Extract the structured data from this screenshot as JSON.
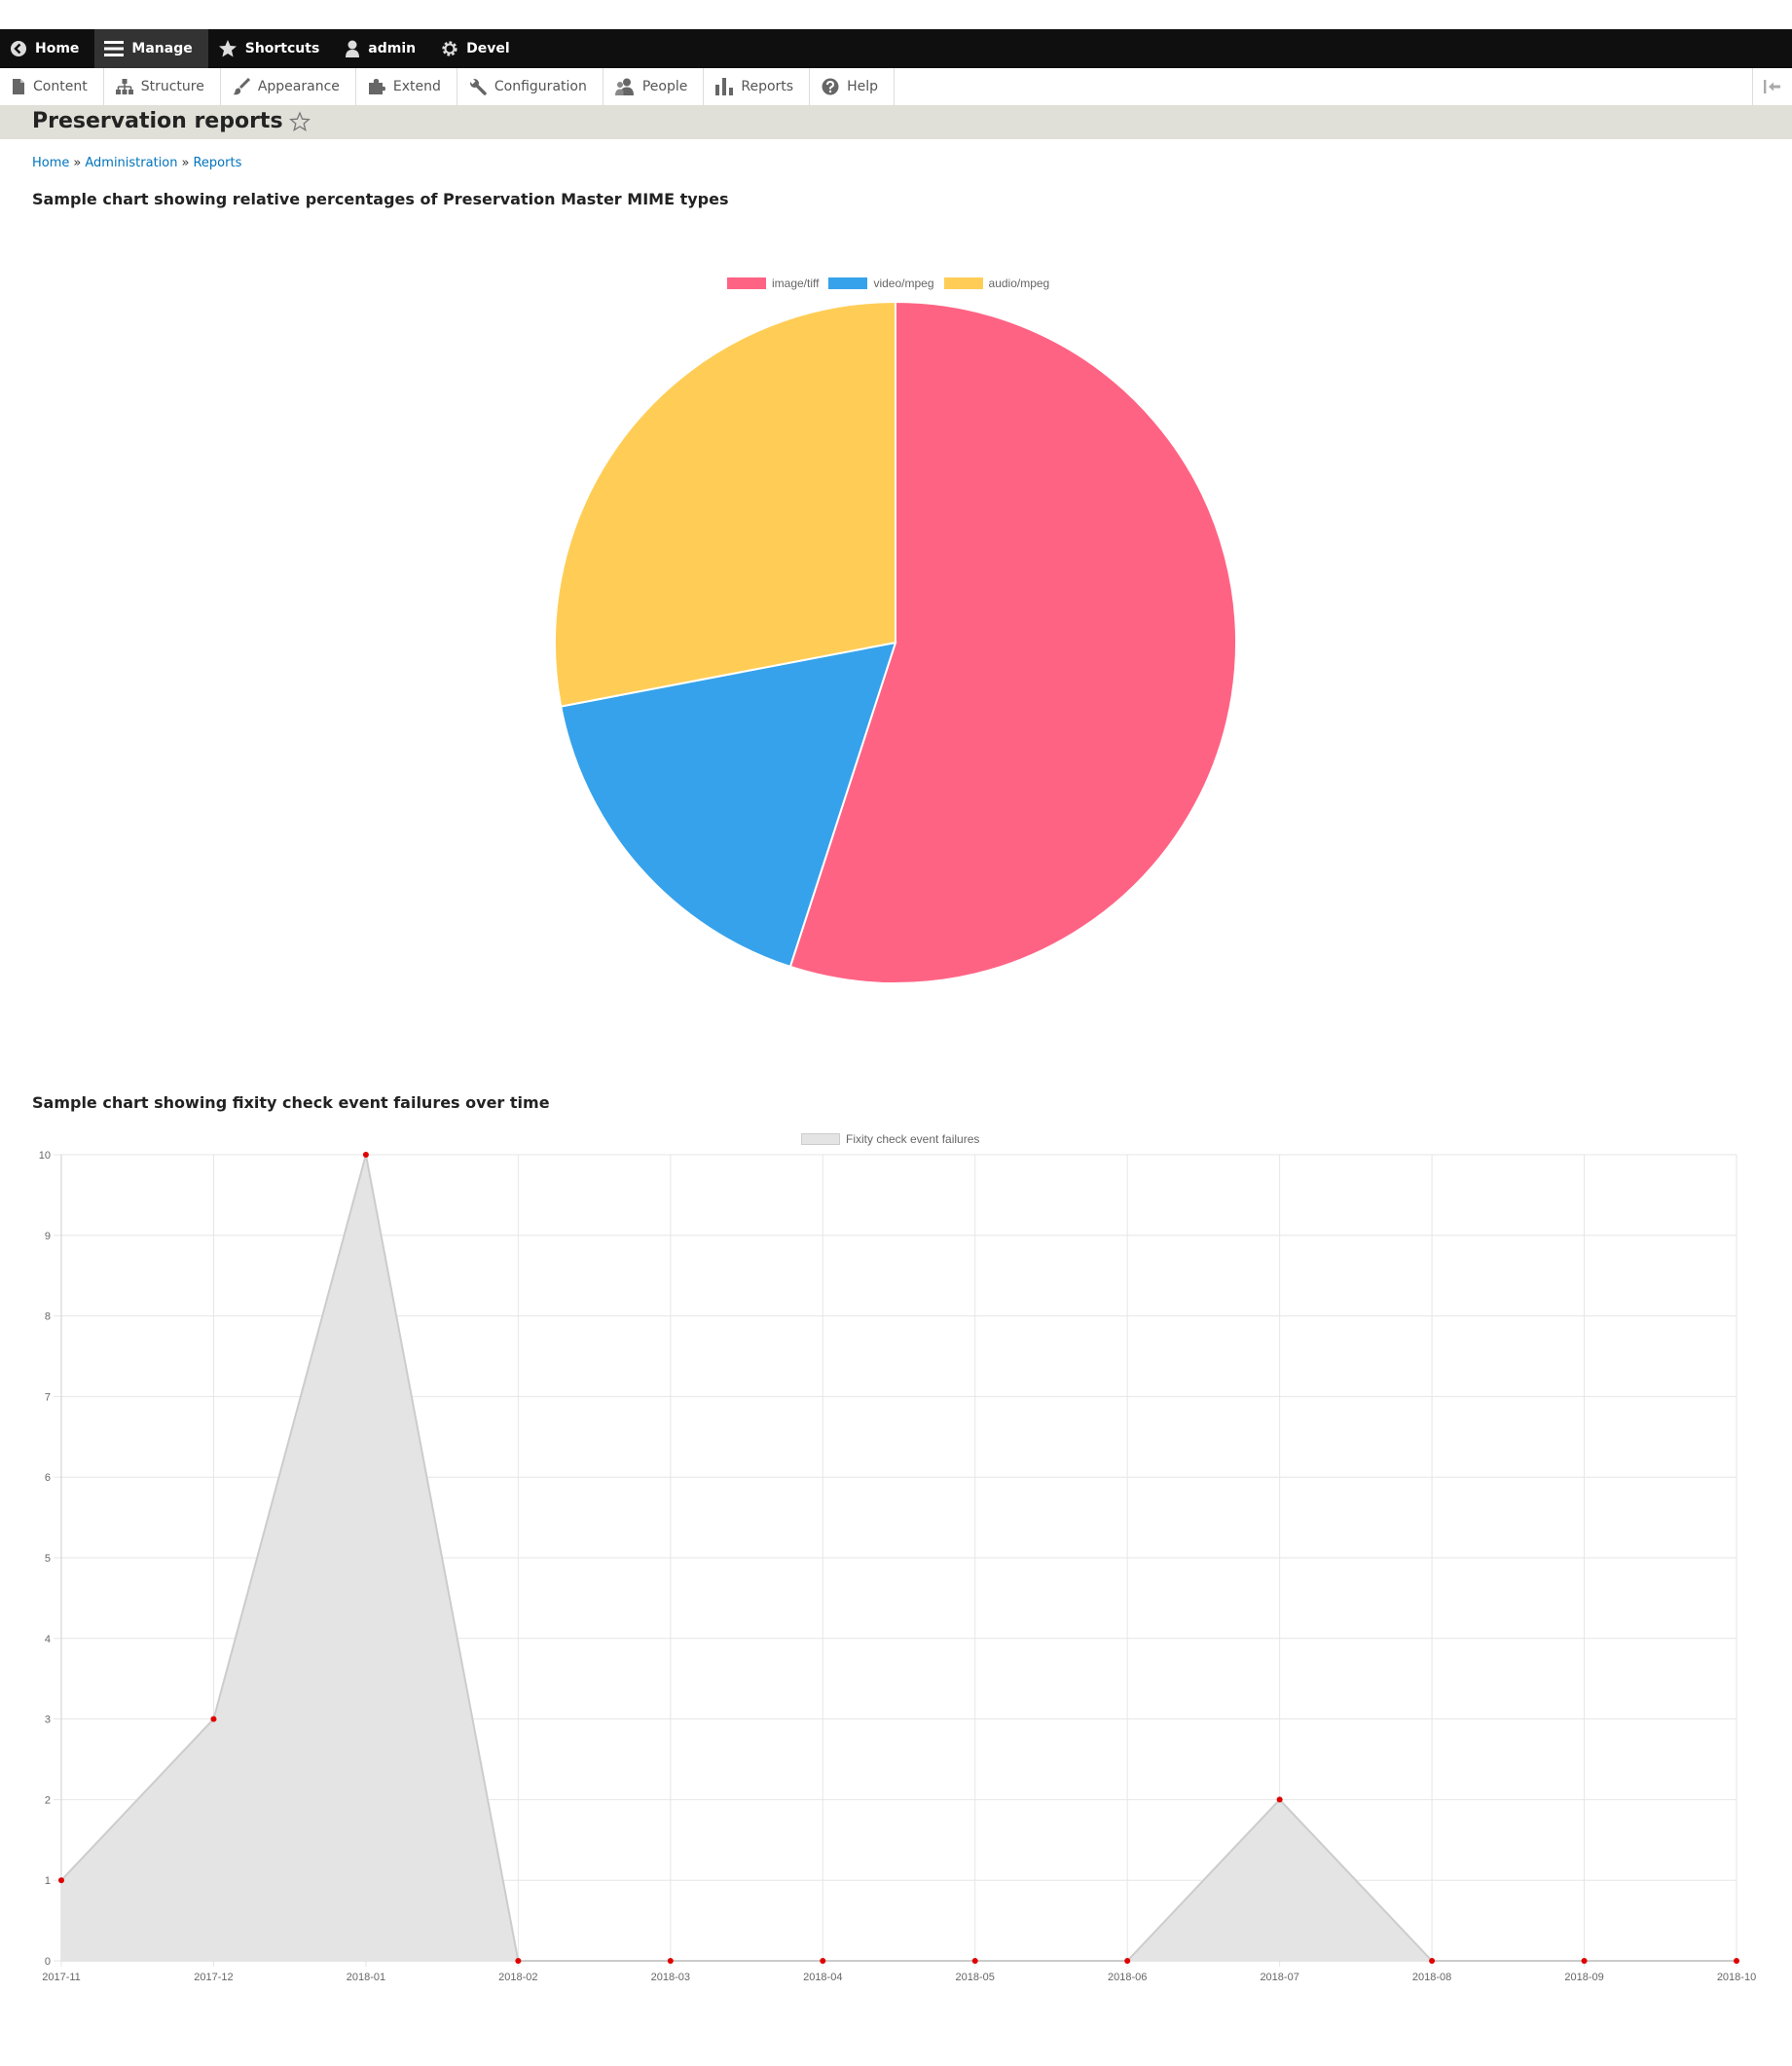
{
  "toolbar": {
    "items": [
      {
        "label": "Home",
        "icon": "back-arrow-icon"
      },
      {
        "label": "Manage",
        "icon": "hamburger-icon"
      },
      {
        "label": "Shortcuts",
        "icon": "star-icon"
      },
      {
        "label": "admin",
        "icon": "user-icon"
      },
      {
        "label": "Devel",
        "icon": "gear-icon"
      }
    ]
  },
  "tray": {
    "items": [
      {
        "label": "Content",
        "icon": "file-icon"
      },
      {
        "label": "Structure",
        "icon": "sitemap-icon"
      },
      {
        "label": "Appearance",
        "icon": "paintbrush-icon"
      },
      {
        "label": "Extend",
        "icon": "puzzle-icon"
      },
      {
        "label": "Configuration",
        "icon": "wrench-icon"
      },
      {
        "label": "People",
        "icon": "people-icon"
      },
      {
        "label": "Reports",
        "icon": "bar-chart-icon"
      },
      {
        "label": "Help",
        "icon": "help-icon"
      }
    ]
  },
  "page": {
    "title": "Preservation reports",
    "breadcrumb": [
      "Home",
      "Administration",
      "Reports"
    ],
    "breadcrumb_separator": "»"
  },
  "sections": {
    "pie_title": "Sample chart showing relative percentages of Preservation Master MIME types",
    "line_title": "Sample chart showing fixity check event failures over time"
  },
  "chart_data": [
    {
      "type": "pie",
      "title": "",
      "categories": [
        "image/tiff",
        "video/mpeg",
        "audio/mpeg"
      ],
      "values": [
        55,
        17,
        28
      ],
      "colors": [
        "#ff6384",
        "#36a2eb",
        "#ffcd56"
      ],
      "legend": "top"
    },
    {
      "type": "area",
      "title": "",
      "series": [
        {
          "name": "Fixity check event failures",
          "values": [
            1,
            3,
            10,
            0,
            0,
            0,
            0,
            0,
            2,
            0,
            0,
            0
          ]
        }
      ],
      "categories": [
        "2017-11",
        "2017-12",
        "2018-01",
        "2018-02",
        "2018-03",
        "2018-04",
        "2018-05",
        "2018-06",
        "2018-07",
        "2018-08",
        "2018-09",
        "2018-10"
      ],
      "ylim": [
        0,
        10
      ],
      "yticks": [
        "0",
        "1",
        "2",
        "3",
        "4",
        "5",
        "6",
        "7",
        "8",
        "9",
        "10"
      ],
      "grid": true,
      "legend": "top",
      "colors": {
        "fill": "#e4e4e4",
        "line": "#cccccc",
        "point": "#e00000",
        "grid": "#e6e6e6"
      }
    }
  ]
}
